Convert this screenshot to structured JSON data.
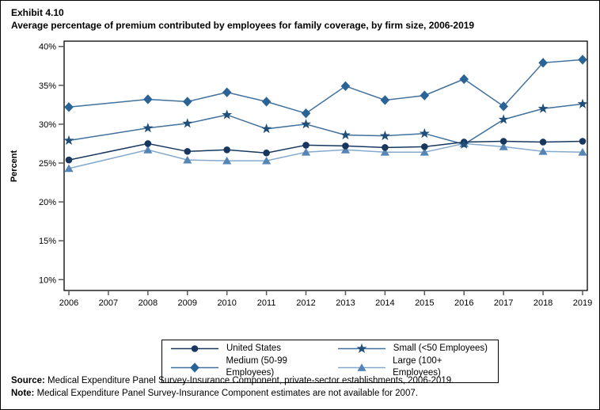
{
  "header": {
    "exhibit": "Exhibit 4.10",
    "title": "Average percentage of premium contributed by employees for family coverage, by firm size, 2006-2019"
  },
  "chart_data": {
    "type": "line",
    "title": "Average percentage of premium contributed by employees for family coverage, by firm size, 2006-2019",
    "xlabel": "",
    "ylabel": "Percent",
    "ylim": [
      10,
      40
    ],
    "ytick_step": 5,
    "ytick_suffix": "%",
    "grid": false,
    "legend_position": "bottom",
    "missing_year_note": "2007 estimates not available; lines connect 2006 to 2008",
    "categories": [
      "2006",
      "2007",
      "2008",
      "2009",
      "2010",
      "2011",
      "2012",
      "2013",
      "2014",
      "2015",
      "2016",
      "2017",
      "2018",
      "2019"
    ],
    "series": [
      {
        "name": "United States",
        "marker": "circle",
        "marker_color": "#17375E",
        "line_color": "#17375E",
        "values": [
          25.4,
          null,
          27.5,
          26.5,
          26.7,
          26.3,
          27.3,
          27.2,
          27.0,
          27.1,
          27.7,
          27.8,
          27.7,
          27.8
        ]
      },
      {
        "name": "Small (<50 Employees)",
        "marker": "star",
        "marker_color": "#1F4E79",
        "line_color": "#41719C",
        "values": [
          27.9,
          null,
          29.5,
          30.1,
          31.2,
          29.4,
          30.0,
          28.6,
          28.5,
          28.8,
          27.4,
          30.6,
          32.0,
          32.6
        ]
      },
      {
        "name": "Medium (50-99 Employees)",
        "marker": "diamond",
        "marker_color": "#2A6496",
        "line_color": "#41719C",
        "values": [
          32.2,
          null,
          33.2,
          32.9,
          34.1,
          32.9,
          31.4,
          34.9,
          33.1,
          33.7,
          35.8,
          32.3,
          37.9,
          38.3
        ]
      },
      {
        "name": "Large (100+ Employees)",
        "marker": "triangle",
        "marker_color": "#5585B5",
        "line_color": "#85A9CD",
        "values": [
          24.3,
          null,
          26.7,
          25.4,
          25.3,
          25.3,
          26.4,
          26.7,
          26.4,
          26.4,
          27.5,
          27.1,
          26.5,
          26.4
        ]
      }
    ]
  },
  "footer": {
    "source_label": "Source:",
    "source_text": " Medical Expenditure Panel Survey-Insurance Component, private-sector establishments, 2006-2019.",
    "note_label": "Note:",
    "note_text": " Medical Expenditure Panel Survey-Insurance Component estimates are not available for 2007."
  }
}
